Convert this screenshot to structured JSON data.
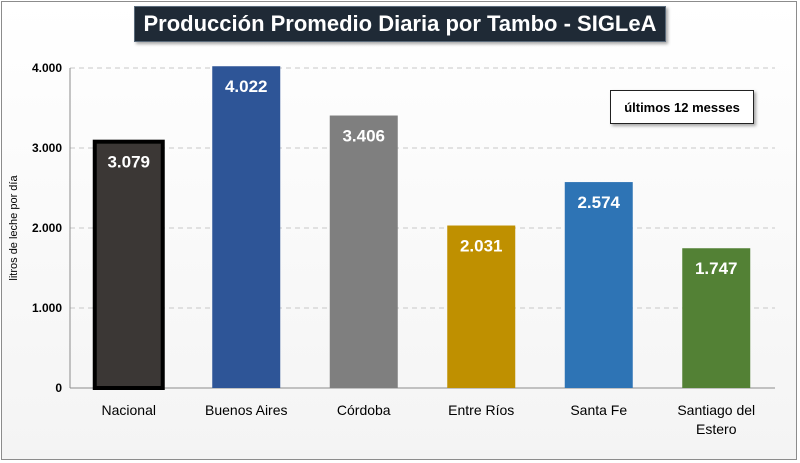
{
  "chart_data": {
    "type": "bar",
    "title": "Producción Promedio Diaria por Tambo - SIGLeA",
    "note": "últimos 12 messes",
    "xlabel": "",
    "ylabel": "litros de leche por día",
    "ylim": [
      0,
      4000
    ],
    "yticks": [
      "0",
      "1.000",
      "2.000",
      "3.000",
      "4.000"
    ],
    "ytick_values": [
      0,
      1000,
      2000,
      3000,
      4000
    ],
    "grid": true,
    "categories": [
      [
        "Nacional"
      ],
      [
        "Buenos Aires"
      ],
      [
        "Córdoba"
      ],
      [
        "Entre Ríos"
      ],
      [
        "Santa Fe"
      ],
      [
        "Santiago del",
        "Estero"
      ]
    ],
    "values": [
      3079,
      4022,
      3406,
      2031,
      2574,
      1747
    ],
    "data_labels": [
      "3.079",
      "4.022",
      "3.406",
      "2.031",
      "2.574",
      "1.747"
    ],
    "colors": [
      "#3b3735",
      "#2e5597",
      "#7f7f7f",
      "#bf9000",
      "#2e74b5",
      "#538135"
    ]
  }
}
